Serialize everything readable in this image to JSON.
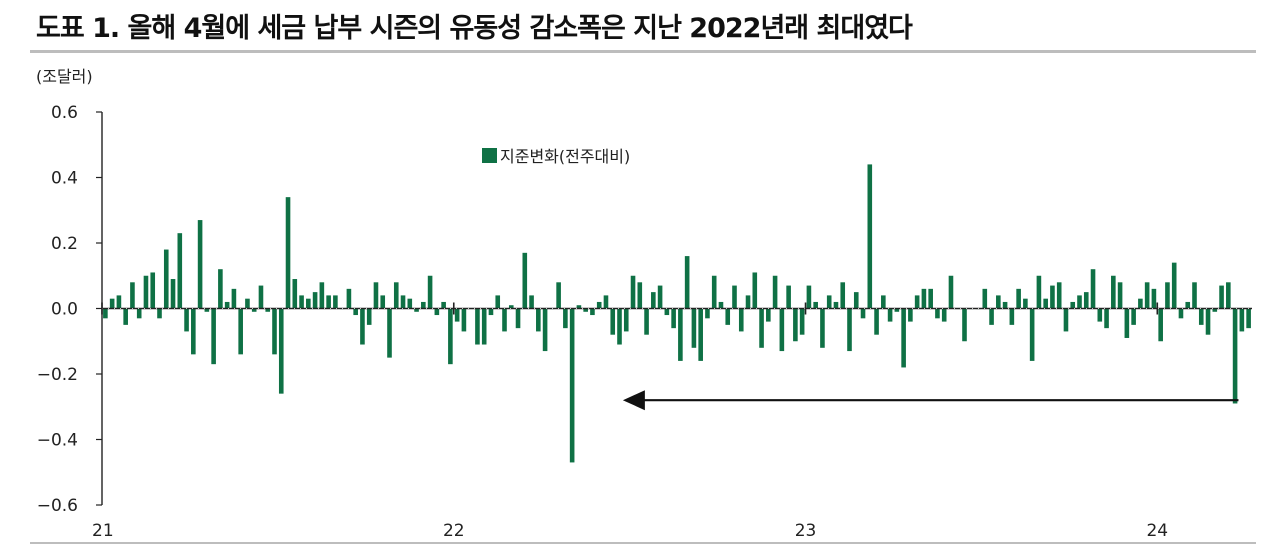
{
  "title": "도표 1. 올해 4월에 세금 납부 시즌의 유동성 감소폭은 지난 2022년래 최대였다",
  "colors": {
    "bar": "#0f7145",
    "axis": "#222222",
    "arrow": "#111111",
    "rule": "#bdbdbd"
  },
  "chart_data": {
    "type": "bar",
    "unit": "(조달러)",
    "ylim": [
      -0.6,
      0.6
    ],
    "yticks": [
      "0.6",
      "0.4",
      "0.2",
      "0.0",
      "−0.2",
      "−0.4",
      "−0.6"
    ],
    "ytick_values": [
      0.6,
      0.4,
      0.2,
      0.0,
      -0.2,
      -0.4,
      -0.6
    ],
    "xticks": [
      {
        "label": "21",
        "index": 0
      },
      {
        "label": "22",
        "index": 52
      },
      {
        "label": "23",
        "index": 104
      },
      {
        "label": "24",
        "index": 156
      }
    ],
    "legend": {
      "label": "지준변화(전주대비)",
      "position": "top-center"
    },
    "annotations": [
      {
        "type": "arrow",
        "direction": "left",
        "from_index": 168,
        "to_index": 77,
        "y": -0.28
      }
    ],
    "series": [
      {
        "name": "지준변화(전주대비)",
        "values": [
          -0.03,
          0.03,
          0.04,
          -0.05,
          0.08,
          -0.03,
          0.1,
          0.11,
          -0.03,
          0.18,
          0.09,
          0.23,
          -0.07,
          -0.14,
          0.27,
          -0.01,
          -0.17,
          0.12,
          0.02,
          0.06,
          -0.14,
          0.03,
          -0.01,
          0.07,
          -0.01,
          -0.14,
          -0.26,
          0.34,
          0.09,
          0.04,
          0.03,
          0.05,
          0.08,
          0.04,
          0.04,
          0.0,
          0.06,
          -0.02,
          -0.11,
          -0.05,
          0.08,
          0.04,
          -0.15,
          0.08,
          0.04,
          0.03,
          -0.01,
          0.02,
          0.1,
          -0.02,
          0.02,
          -0.17,
          -0.04,
          -0.07,
          0.0,
          -0.11,
          -0.11,
          -0.02,
          0.04,
          -0.07,
          0.01,
          -0.06,
          0.17,
          0.04,
          -0.07,
          -0.13,
          0.0,
          0.08,
          -0.06,
          -0.47,
          0.01,
          -0.01,
          -0.02,
          0.02,
          0.04,
          -0.08,
          -0.11,
          -0.07,
          0.1,
          0.08,
          -0.08,
          0.05,
          0.07,
          -0.02,
          -0.06,
          -0.16,
          0.16,
          -0.12,
          -0.16,
          -0.03,
          0.1,
          0.02,
          -0.05,
          0.07,
          -0.07,
          0.04,
          0.11,
          -0.12,
          -0.04,
          0.1,
          -0.13,
          0.07,
          -0.1,
          -0.08,
          0.07,
          0.02,
          -0.12,
          0.04,
          0.02,
          0.08,
          -0.13,
          0.05,
          -0.03,
          0.44,
          -0.08,
          0.04,
          -0.04,
          -0.01,
          -0.18,
          -0.04,
          0.04,
          0.06,
          0.06,
          -0.03,
          -0.04,
          0.1,
          0.0,
          -0.1,
          0.0,
          0.0,
          0.06,
          -0.05,
          0.04,
          0.02,
          -0.05,
          0.06,
          0.03,
          -0.16,
          0.1,
          0.03,
          0.07,
          0.08,
          -0.07,
          0.02,
          0.04,
          0.05,
          0.12,
          -0.04,
          -0.06,
          0.1,
          0.08,
          -0.09,
          -0.05,
          0.03,
          0.08,
          0.06,
          -0.1,
          0.08,
          0.14,
          -0.03,
          0.02,
          0.08,
          -0.05,
          -0.08,
          -0.01,
          0.07,
          0.08,
          -0.29,
          -0.07,
          -0.06
        ]
      }
    ]
  }
}
